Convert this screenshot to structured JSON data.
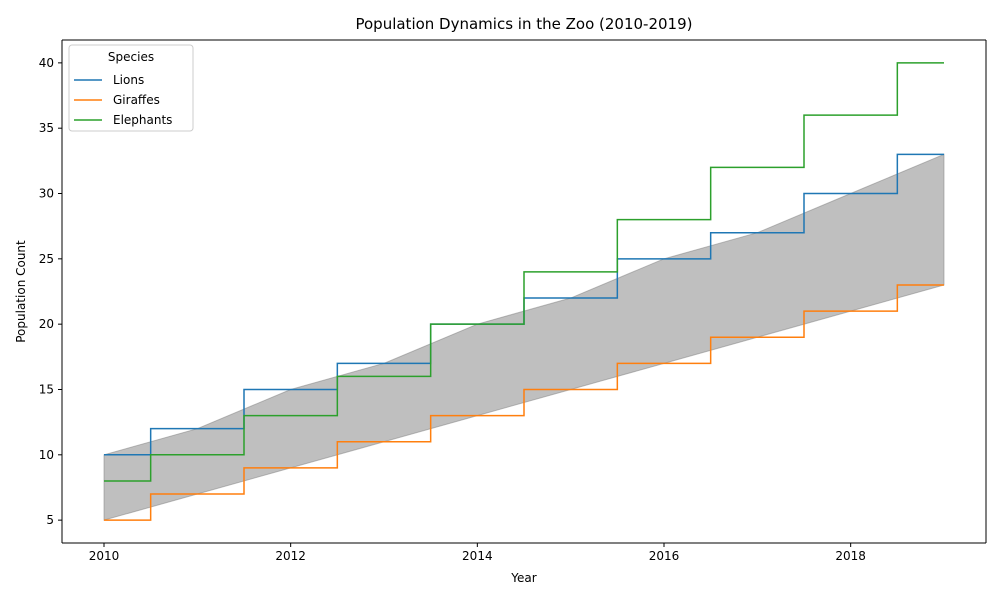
{
  "chart_data": {
    "type": "line",
    "drawstyle": "steps-mid",
    "title": "Population Dynamics in the Zoo (2010-2019)",
    "xlabel": "Year",
    "ylabel": "Population Count",
    "x": [
      2010,
      2011,
      2012,
      2013,
      2014,
      2015,
      2016,
      2017,
      2018,
      2019
    ],
    "xlim": [
      2009.55,
      2019.45
    ],
    "ylim": [
      3.25,
      41.75
    ],
    "xticks": [
      2010,
      2012,
      2014,
      2016,
      2018
    ],
    "yticks": [
      5,
      10,
      15,
      20,
      25,
      30,
      35,
      40
    ],
    "series": [
      {
        "name": "Lions",
        "color": "#1f77b4",
        "values": [
          10,
          12,
          15,
          17,
          20,
          22,
          25,
          27,
          30,
          33
        ]
      },
      {
        "name": "Giraffes",
        "color": "#ff7f0e",
        "values": [
          5,
          7,
          9,
          11,
          13,
          15,
          17,
          19,
          21,
          23
        ]
      },
      {
        "name": "Elephants",
        "color": "#2ca02c",
        "values": [
          8,
          10,
          13,
          16,
          20,
          24,
          28,
          32,
          36,
          40
        ]
      }
    ],
    "fill_between": {
      "lower": "Giraffes",
      "upper": "Lions",
      "color": "#808080",
      "alpha": 0.5
    },
    "legend": {
      "title": "Species",
      "position": "upper left"
    },
    "grid": false
  }
}
